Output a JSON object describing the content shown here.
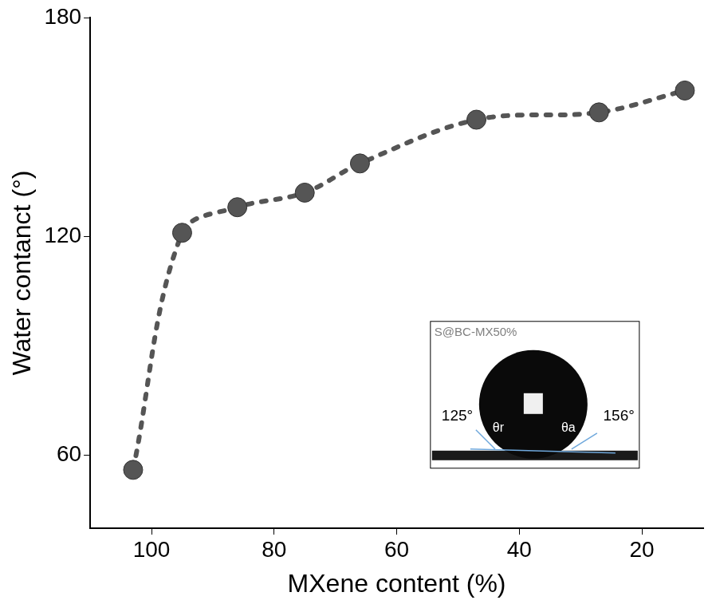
{
  "chart_data": {
    "type": "scatter",
    "x_label": "MXene content (%)",
    "y_label": "Water contanct (°)",
    "x": [
      103,
      95,
      86,
      75,
      66,
      47,
      27,
      13
    ],
    "values": [
      56,
      121,
      128,
      132,
      140,
      152,
      154,
      160
    ],
    "color": "#555555",
    "marker": "circle",
    "line_style": "dotted",
    "xlim": [
      110,
      10
    ],
    "xticks": [
      100,
      80,
      60,
      40,
      20
    ],
    "ylim": [
      40,
      180
    ],
    "yticks": [
      60,
      120,
      180
    ],
    "grid": false,
    "annotations": [
      "S@BC-MX50%",
      "125°",
      "θr",
      "θa",
      "156°"
    ]
  }
}
